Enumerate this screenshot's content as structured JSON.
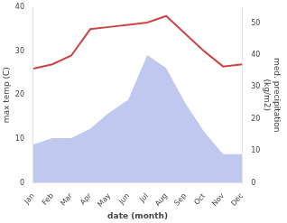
{
  "chart_data": {
    "type": "line",
    "categories": [
      "Jan",
      "Feb",
      "Mar",
      "Apr",
      "May",
      "Jun",
      "Jul",
      "Aug",
      "Sep",
      "Oct",
      "Nov",
      "Dec"
    ],
    "series": [
      {
        "type": "area",
        "color": "#c0c8f0",
        "axis": "y2",
        "values": [
          12,
          14,
          14,
          17,
          22,
          26,
          40,
          36,
          25,
          16,
          9,
          9
        ]
      },
      {
        "type": "line",
        "color": "#cc4444",
        "values": [
          26,
          27,
          29,
          35,
          35.5,
          36,
          36.5,
          38,
          34,
          30,
          26.5,
          27
        ]
      }
    ],
    "xlabel": "date (month)",
    "ylabel": "max temp (C)",
    "y2label": "med. precipitation\n(kg/m2)",
    "ylim": [
      0,
      40
    ],
    "yticks": [
      0,
      10,
      20,
      30,
      40
    ],
    "y2lim": [
      0,
      55
    ],
    "y2ticks": [
      0,
      10,
      20,
      30,
      40,
      50
    ],
    "grid": false
  }
}
